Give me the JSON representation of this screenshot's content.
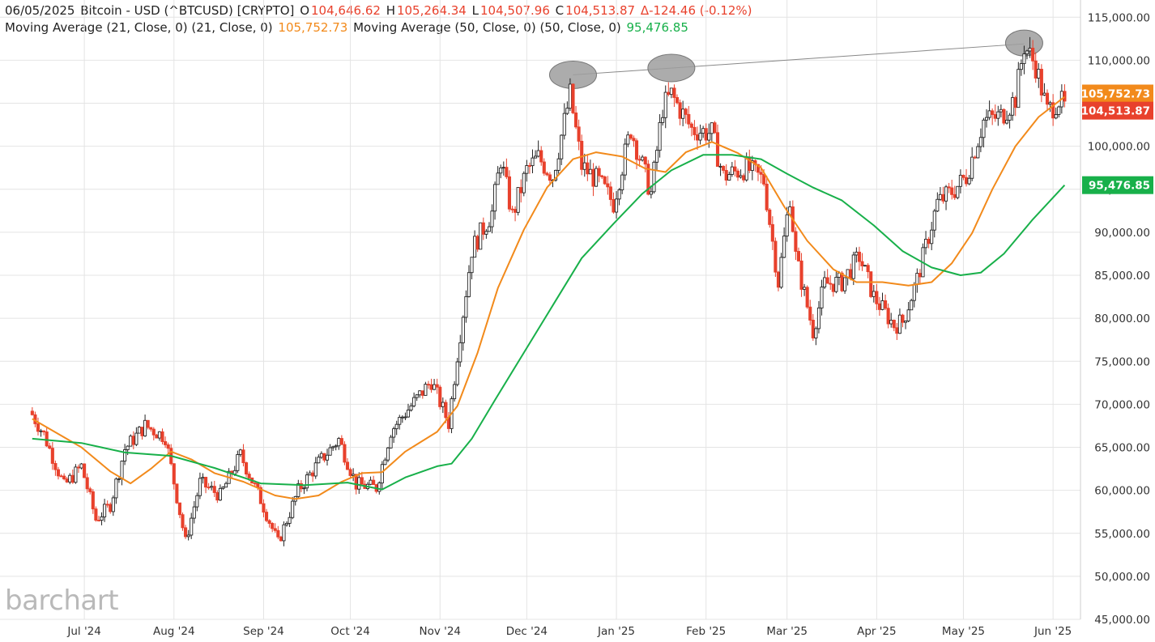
{
  "header": {
    "date": "06/05/2025",
    "symbol": "Bitcoin - USD (^BTCUSD) [CRYPTO]",
    "open_label": "O",
    "open": "104,646.62",
    "high_label": "H",
    "high": "105,264.34",
    "low_label": "L",
    "low": "104,507.96",
    "close_label": "C",
    "close": "104,513.87",
    "change": "Δ-124.46 (-0.12%)",
    "ma21_label": "Moving Average (21, Close, 0)  (21, Close, 0)",
    "ma21_value": "105,752.73",
    "ma50_label": "Moving Average (50, Close, 0)  (50, Close, 0)",
    "ma50_value": "95,476.85"
  },
  "watermark": "barchart",
  "colors": {
    "up": "#222222",
    "down": "#e8412c",
    "ma21": "#f28a1b",
    "ma50": "#18b04a",
    "grid": "#e4e4e4",
    "trendline": "#888888",
    "highlight": "#9e9e9e"
  },
  "chart_data": {
    "type": "line",
    "title": "06/05/2025 Bitcoin - USD (^BTCUSD) [CRYPTO]",
    "subtype": "candlestick with moving averages",
    "y_axis_side": "right",
    "ylim": [
      45000,
      117000
    ],
    "y_ticks": [
      45000,
      50000,
      55000,
      60000,
      65000,
      70000,
      75000,
      80000,
      85000,
      90000,
      95000,
      100000,
      105000,
      110000,
      115000
    ],
    "y_tick_labels": [
      "45,000.00",
      "50,000.00",
      "55,000.00",
      "60,000.00",
      "65,000.00",
      "70,000.00",
      "75,000.00",
      "80,000.00",
      "85,000.00",
      "90,000.00",
      "95,000.00",
      "100,000.00",
      "105,000.00",
      "110,000.00",
      "115,000.00"
    ],
    "x_ticks": [
      {
        "label": "Jul '24",
        "date": "2024-07-01"
      },
      {
        "label": "Aug '24",
        "date": "2024-08-01"
      },
      {
        "label": "Sep '24",
        "date": "2024-09-01"
      },
      {
        "label": "Oct '24",
        "date": "2024-10-01"
      },
      {
        "label": "Nov '24",
        "date": "2024-11-01"
      },
      {
        "label": "Dec '24",
        "date": "2024-12-01"
      },
      {
        "label": "Jan '25",
        "date": "2025-01-01"
      },
      {
        "label": "Feb '25",
        "date": "2025-02-01"
      },
      {
        "label": "Mar '25",
        "date": "2025-03-01"
      },
      {
        "label": "Apr '25",
        "date": "2025-04-01"
      },
      {
        "label": "May '25",
        "date": "2025-05-01"
      },
      {
        "label": "Jun '25",
        "date": "2025-06-01"
      }
    ],
    "x_range": [
      "2024-06-13",
      "2025-06-05"
    ],
    "price_series": {
      "name": "Bitcoin - USD (^BTCUSD)",
      "close_path": [
        [
          "2024-06-13",
          68800
        ],
        [
          "2024-06-17",
          66500
        ],
        [
          "2024-06-24",
          60500
        ],
        [
          "2024-06-30",
          62800
        ],
        [
          "2024-07-05",
          56600
        ],
        [
          "2024-07-10",
          58300
        ],
        [
          "2024-07-15",
          64800
        ],
        [
          "2024-07-22",
          67500
        ],
        [
          "2024-07-29",
          66200
        ],
        [
          "2024-08-05",
          54000
        ],
        [
          "2024-08-10",
          60900
        ],
        [
          "2024-08-17",
          59400
        ],
        [
          "2024-08-24",
          64100
        ],
        [
          "2024-08-31",
          58900
        ],
        [
          "2024-09-06",
          53900
        ],
        [
          "2024-09-13",
          60000
        ],
        [
          "2024-09-20",
          63200
        ],
        [
          "2024-09-27",
          65900
        ],
        [
          "2024-10-03",
          60700
        ],
        [
          "2024-10-10",
          60300
        ],
        [
          "2024-10-15",
          66900
        ],
        [
          "2024-10-20",
          69000
        ],
        [
          "2024-10-29",
          72700
        ],
        [
          "2024-11-04",
          67800
        ],
        [
          "2024-11-07",
          75800
        ],
        [
          "2024-11-12",
          88000
        ],
        [
          "2024-11-19",
          92300
        ],
        [
          "2024-11-22",
          98500
        ],
        [
          "2024-11-26",
          91900
        ],
        [
          "2024-12-01",
          97200
        ],
        [
          "2024-12-05",
          98700
        ],
        [
          "2024-12-10",
          96500
        ],
        [
          "2024-12-16",
          106000
        ],
        [
          "2024-12-20",
          97700
        ],
        [
          "2024-12-26",
          95800
        ],
        [
          "2024-12-31",
          93400
        ],
        [
          "2025-01-06",
          102000
        ],
        [
          "2025-01-13",
          94500
        ],
        [
          "2025-01-17",
          104500
        ],
        [
          "2025-01-20",
          106000
        ],
        [
          "2025-01-27",
          102000
        ],
        [
          "2025-02-03",
          101500
        ],
        [
          "2025-02-07",
          96500
        ],
        [
          "2025-02-15",
          97500
        ],
        [
          "2025-02-21",
          96000
        ],
        [
          "2025-02-26",
          84200
        ],
        [
          "2025-03-02",
          94200
        ],
        [
          "2025-03-04",
          87200
        ],
        [
          "2025-03-10",
          78500
        ],
        [
          "2025-03-14",
          84000
        ],
        [
          "2025-03-20",
          84200
        ],
        [
          "2025-03-26",
          87200
        ],
        [
          "2025-03-31",
          82500
        ],
        [
          "2025-04-07",
          79200
        ],
        [
          "2025-04-10",
          79600
        ],
        [
          "2025-04-15",
          84500
        ],
        [
          "2025-04-22",
          93400
        ],
        [
          "2025-04-28",
          95000
        ],
        [
          "2025-05-02",
          96500
        ],
        [
          "2025-05-08",
          103000
        ],
        [
          "2025-05-14",
          103500
        ],
        [
          "2025-05-19",
          105600
        ],
        [
          "2025-05-22",
          111700
        ],
        [
          "2025-05-26",
          109400
        ],
        [
          "2025-05-30",
          104000
        ],
        [
          "2025-06-03",
          105400
        ],
        [
          "2025-06-05",
          104513.87
        ]
      ]
    },
    "series": [
      {
        "name": "Moving Average (21, Close, 0)",
        "last_value": 105752.73,
        "points": [
          [
            "2024-06-13",
            68300
          ],
          [
            "2024-06-30",
            65000
          ],
          [
            "2024-07-10",
            62200
          ],
          [
            "2024-07-17",
            60800
          ],
          [
            "2024-07-24",
            62500
          ],
          [
            "2024-07-31",
            64500
          ],
          [
            "2024-08-07",
            63600
          ],
          [
            "2024-08-15",
            62000
          ],
          [
            "2024-08-25",
            61000
          ],
          [
            "2024-09-05",
            59400
          ],
          [
            "2024-09-12",
            59000
          ],
          [
            "2024-09-20",
            59400
          ],
          [
            "2024-09-28",
            61000
          ],
          [
            "2024-10-05",
            62000
          ],
          [
            "2024-10-12",
            62100
          ],
          [
            "2024-10-20",
            64500
          ],
          [
            "2024-10-31",
            66800
          ],
          [
            "2024-11-07",
            69800
          ],
          [
            "2024-11-14",
            76000
          ],
          [
            "2024-11-21",
            83500
          ],
          [
            "2024-11-30",
            90300
          ],
          [
            "2024-12-08",
            95200
          ],
          [
            "2024-12-17",
            98500
          ],
          [
            "2024-12-25",
            99300
          ],
          [
            "2025-01-03",
            98800
          ],
          [
            "2025-01-11",
            97400
          ],
          [
            "2025-01-18",
            97000
          ],
          [
            "2025-01-25",
            99300
          ],
          [
            "2025-02-03",
            100500
          ],
          [
            "2025-02-12",
            99200
          ],
          [
            "2025-02-20",
            97500
          ],
          [
            "2025-02-28",
            93000
          ],
          [
            "2025-03-08",
            89000
          ],
          [
            "2025-03-17",
            85700
          ],
          [
            "2025-03-25",
            84200
          ],
          [
            "2025-04-03",
            84200
          ],
          [
            "2025-04-12",
            83800
          ],
          [
            "2025-04-20",
            84200
          ],
          [
            "2025-04-27",
            86400
          ],
          [
            "2025-05-04",
            89900
          ],
          [
            "2025-05-11",
            95000
          ],
          [
            "2025-05-19",
            100000
          ],
          [
            "2025-05-27",
            103400
          ],
          [
            "2025-06-05",
            105752.73
          ]
        ]
      },
      {
        "name": "Moving Average (50, Close, 0)",
        "last_value": 95476.85,
        "points": [
          [
            "2024-06-13",
            66000
          ],
          [
            "2024-06-30",
            65500
          ],
          [
            "2024-07-15",
            64400
          ],
          [
            "2024-07-31",
            64000
          ],
          [
            "2024-08-15",
            62600
          ],
          [
            "2024-08-31",
            60800
          ],
          [
            "2024-09-15",
            60600
          ],
          [
            "2024-09-30",
            60900
          ],
          [
            "2024-10-12",
            60100
          ],
          [
            "2024-10-20",
            61500
          ],
          [
            "2024-10-31",
            62800
          ],
          [
            "2024-11-05",
            63100
          ],
          [
            "2024-11-12",
            66000
          ],
          [
            "2024-11-20",
            70500
          ],
          [
            "2024-11-30",
            76000
          ],
          [
            "2024-12-10",
            81500
          ],
          [
            "2024-12-20",
            87000
          ],
          [
            "2024-12-31",
            91000
          ],
          [
            "2025-01-10",
            94500
          ],
          [
            "2025-01-20",
            97200
          ],
          [
            "2025-01-31",
            99000
          ],
          [
            "2025-02-10",
            99000
          ],
          [
            "2025-02-20",
            98500
          ],
          [
            "2025-03-01",
            96800
          ],
          [
            "2025-03-10",
            95200
          ],
          [
            "2025-03-20",
            93700
          ],
          [
            "2025-03-31",
            90800
          ],
          [
            "2025-04-10",
            87800
          ],
          [
            "2025-04-20",
            85900
          ],
          [
            "2025-04-30",
            85000
          ],
          [
            "2025-05-07",
            85300
          ],
          [
            "2025-05-15",
            87500
          ],
          [
            "2025-05-25",
            91500
          ],
          [
            "2025-06-05",
            95476.85
          ]
        ]
      }
    ],
    "annotations": [
      {
        "type": "trendline",
        "from": [
          "2024-12-17",
          108300
        ],
        "to": [
          "2025-05-22",
          111900
        ]
      },
      {
        "type": "ellipse",
        "center": [
          "2024-12-17",
          108300
        ]
      },
      {
        "type": "ellipse",
        "center": [
          "2025-01-20",
          109100
        ]
      },
      {
        "type": "ellipse",
        "center": [
          "2025-05-22",
          112000
        ]
      }
    ],
    "price_tags": [
      {
        "value": 105752.73,
        "label": "105,752.73",
        "color": "#f28a1b"
      },
      {
        "value": 104513.87,
        "label": "104,513.87",
        "color": "#e8412c"
      },
      {
        "value": 95476.85,
        "label": "95,476.85",
        "color": "#18b04a"
      }
    ],
    "grid": true,
    "legend": "top-left"
  }
}
